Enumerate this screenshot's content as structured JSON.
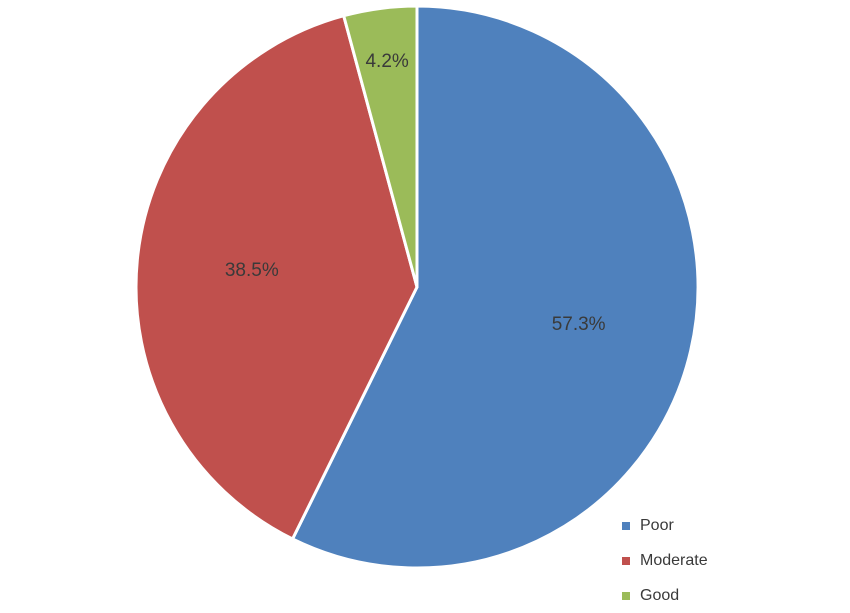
{
  "chart_data": {
    "type": "pie",
    "categories": [
      "Poor",
      "Moderate",
      "Good"
    ],
    "values": [
      57.3,
      38.5,
      4.2
    ],
    "data_labels": [
      "57.3%",
      "38.5%",
      "4.2%"
    ],
    "colors": [
      "#4f81bd",
      "#c0504d",
      "#9bbb59"
    ],
    "start_angle_deg": 0,
    "direction": "clockwise",
    "legend": "bottom-right"
  }
}
